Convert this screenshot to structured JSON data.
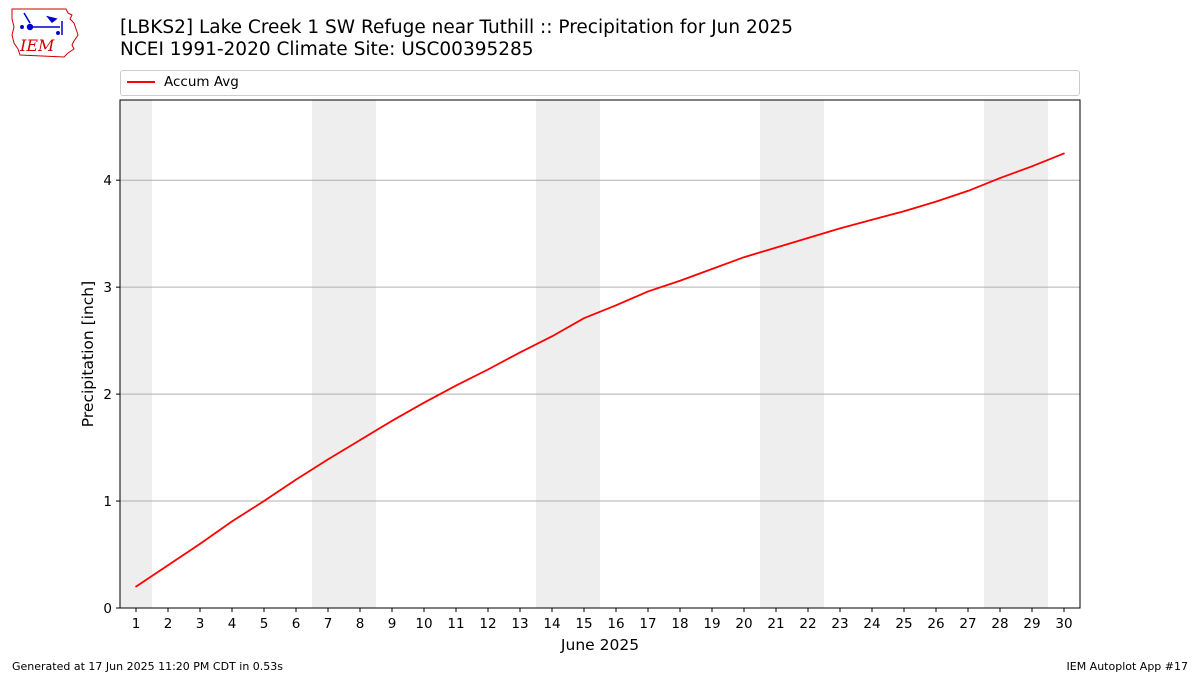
{
  "title_line1": "[LBKS2] Lake Creek 1 SW Refuge near Tuthill :: Precipitation for Jun 2025",
  "title_line2": "NCEI 1991-2020 Climate Site: USC00395285",
  "logo_text": "IEM",
  "footer_left": "Generated at 17 Jun 2025 11:20 PM CDT in 0.53s",
  "footer_right": "IEM Autoplot App #17",
  "colors": {
    "line": "#ff0000",
    "weekend": "#eeeeee",
    "grid": "#b0b0b0",
    "logo": "#cc0000",
    "logo_icon": "#0000cc"
  },
  "chart_data": {
    "type": "line",
    "xlabel": "June 2025",
    "ylabel": "Precipitation [inch]",
    "xlim": [
      0.5,
      30.5
    ],
    "ylim": [
      0,
      4.75
    ],
    "yticks": [
      0,
      1,
      2,
      3,
      4
    ],
    "grid": "horizontal",
    "legend": "top, above plot",
    "weekend_shading": [
      [
        0.5,
        1.5
      ],
      [
        6.5,
        8.5
      ],
      [
        13.5,
        15.5
      ],
      [
        20.5,
        22.5
      ],
      [
        27.5,
        29.5
      ]
    ],
    "x": [
      1,
      2,
      3,
      4,
      5,
      6,
      7,
      8,
      9,
      10,
      11,
      12,
      13,
      14,
      15,
      16,
      17,
      18,
      19,
      20,
      21,
      22,
      23,
      24,
      25,
      26,
      27,
      28,
      29,
      30
    ],
    "series": [
      {
        "name": "Accum Avg",
        "values": [
          0.2,
          0.4,
          0.6,
          0.81,
          1.0,
          1.2,
          1.39,
          1.57,
          1.75,
          1.92,
          2.08,
          2.23,
          2.39,
          2.54,
          2.71,
          2.83,
          2.96,
          3.06,
          3.17,
          3.28,
          3.37,
          3.46,
          3.55,
          3.63,
          3.71,
          3.8,
          3.9,
          4.02,
          4.13,
          4.25
        ]
      }
    ]
  }
}
